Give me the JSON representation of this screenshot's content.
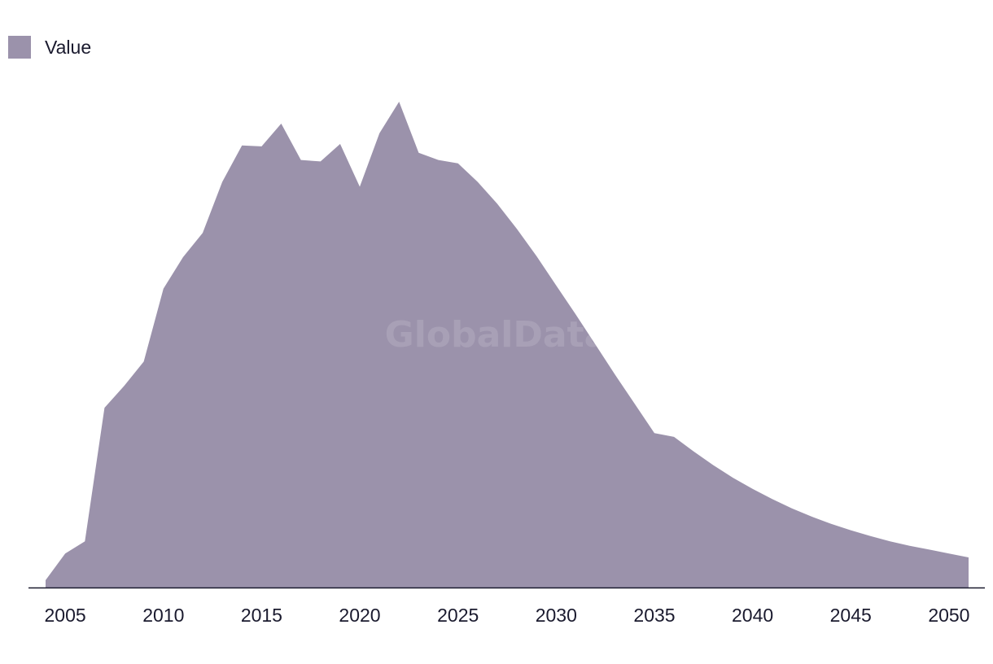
{
  "legend": {
    "label": "Value"
  },
  "watermark": "GlobalData",
  "colors": {
    "area": "#9b92ab",
    "axis": "#1a1a2e",
    "text": "#1a1a2e"
  },
  "chart_data": {
    "type": "area",
    "title": "",
    "xlabel": "",
    "ylabel": "",
    "grid": false,
    "legend_position": "top-left",
    "series": [
      {
        "name": "Value",
        "x": [
          2004,
          2005,
          2006,
          2007,
          2008,
          2009,
          2010,
          2011,
          2012,
          2013,
          2014,
          2015,
          2016,
          2017,
          2018,
          2019,
          2020,
          2021,
          2022,
          2023,
          2024,
          2025,
          2026,
          2027,
          2028,
          2029,
          2030,
          2031,
          2032,
          2033,
          2034,
          2035,
          2036,
          2037,
          2038,
          2039,
          2040,
          2041,
          2042,
          2043,
          2044,
          2045,
          2046,
          2047,
          2048,
          2049,
          2050,
          2051
        ],
        "values": [
          1.5,
          7.0,
          9.5,
          37.0,
          41.5,
          46.5,
          61.5,
          68.0,
          73.0,
          83.5,
          91.0,
          90.8,
          95.5,
          88.0,
          87.7,
          91.3,
          82.5,
          93.5,
          100.0,
          89.5,
          88.0,
          87.3,
          83.5,
          79.0,
          73.8,
          68.2,
          62.2,
          56.2,
          50.0,
          43.8,
          37.8,
          31.8,
          31.0,
          28.0,
          25.2,
          22.6,
          20.3,
          18.2,
          16.3,
          14.6,
          13.1,
          11.8,
          10.6,
          9.5,
          8.6,
          7.8,
          7.0,
          6.2
        ]
      }
    ],
    "xticks": [
      "2005",
      "2010",
      "2015",
      "2020",
      "2025",
      "2030",
      "2035",
      "2040",
      "2045",
      "2050"
    ],
    "xlim": [
      2004,
      2051
    ],
    "ylim": [
      0,
      100
    ]
  }
}
